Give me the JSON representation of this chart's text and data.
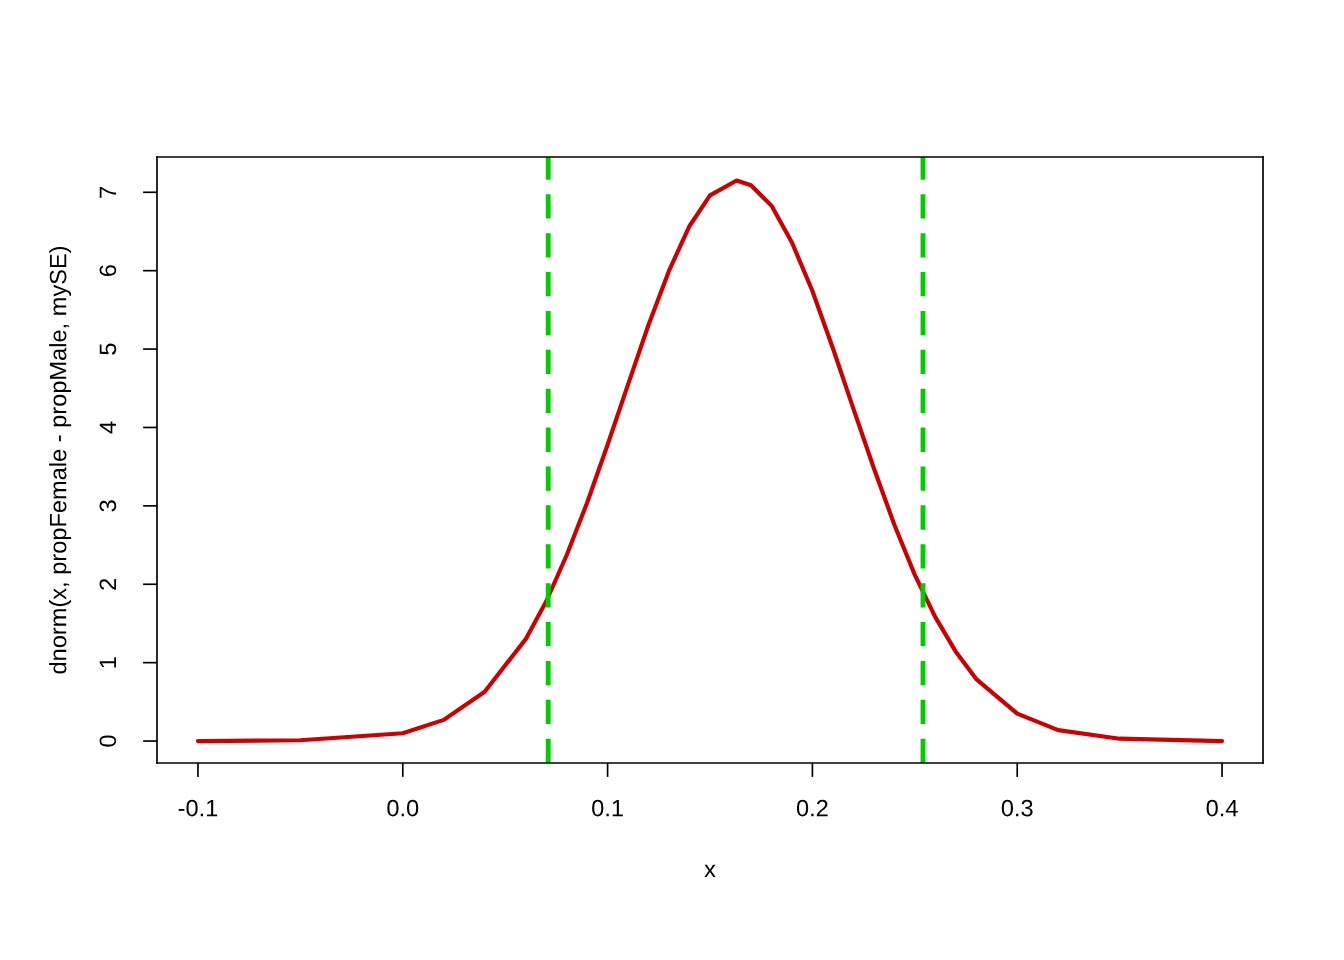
{
  "chart_data": {
    "type": "line",
    "xlabel": "x",
    "ylabel": "dnorm(x, propFemale - propMale, mySE)",
    "xlim": [
      -0.12,
      0.42
    ],
    "ylim": [
      -0.28,
      7.45
    ],
    "xticks": [
      -0.1,
      {
        "value": 0.0,
        "label": "0.0"
      },
      0.1,
      0.2,
      0.3,
      0.4
    ],
    "yticks": [
      0,
      1,
      2,
      3,
      4,
      5,
      6,
      7
    ],
    "grid": false,
    "legend": false,
    "marker": "none",
    "line_style": "solid",
    "series": [
      {
        "color": "#cc0000",
        "x": [
          -0.1,
          -0.05,
          0.0,
          0.02,
          0.04,
          0.06,
          0.07,
          0.08,
          0.09,
          0.1,
          0.11,
          0.12,
          0.13,
          0.14,
          0.15,
          0.163,
          0.17,
          0.18,
          0.19,
          0.2,
          0.21,
          0.22,
          0.23,
          0.24,
          0.25,
          0.26,
          0.27,
          0.28,
          0.3,
          0.32,
          0.35,
          0.4
        ],
        "values": [
          0,
          0.01,
          0.1,
          0.27,
          0.63,
          1.3,
          1.78,
          2.37,
          3.04,
          3.78,
          4.55,
          5.31,
          6.0,
          6.57,
          6.96,
          7.15,
          7.09,
          6.83,
          6.36,
          5.74,
          5.01,
          4.24,
          3.48,
          2.76,
          2.12,
          1.58,
          1.14,
          0.79,
          0.35,
          0.14,
          0.03,
          0
        ]
      }
    ],
    "ref_lines": [
      {
        "axis": "x",
        "value": 0.071,
        "color": "#00cc00",
        "line_style": "dashed"
      },
      {
        "axis": "x",
        "value": 0.254,
        "color": "#00cc00",
        "line_style": "dashed"
      }
    ]
  }
}
